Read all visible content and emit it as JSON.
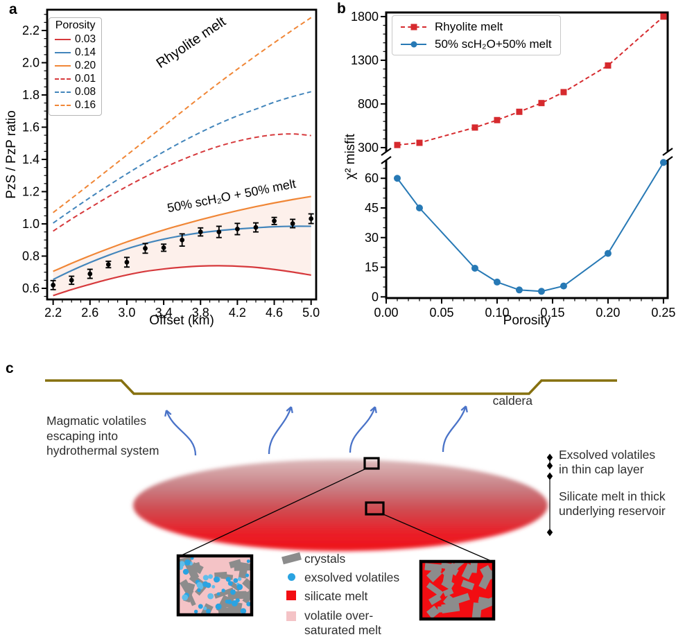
{
  "figure": {
    "background": "#ffffff",
    "panel_labels": {
      "a": "a",
      "b": "b",
      "c": "c"
    }
  },
  "chart_data": [
    {
      "id": "panel_a",
      "type": "line",
      "xlabel": "Offset (km)",
      "ylabel": "PzS / PzP ratio",
      "xlim": [
        2.135,
        5.055
      ],
      "ylim": [
        0.531,
        2.329
      ],
      "xticks": {
        "values": [
          2.2,
          2.6,
          3.0,
          3.4,
          3.8,
          4.2,
          4.6,
          5.0
        ],
        "labels": [
          "2.2",
          "2.6",
          "3.0",
          "3.4",
          "3.8",
          "4.2",
          "4.6",
          "5.0"
        ],
        "minor": 0.1
      },
      "yticks": {
        "values": [
          0.6,
          0.8,
          1.0,
          1.2,
          1.4,
          1.6,
          1.8,
          2.0,
          2.2
        ],
        "labels": [
          "0.6",
          "0.8",
          "1.0",
          "1.2",
          "1.4",
          "1.6",
          "1.8",
          "2.0",
          "2.2"
        ],
        "minor": 0.05
      },
      "legend_title": "Porosity",
      "x": [
        2.2,
        2.4,
        2.6,
        2.8,
        3.0,
        3.2,
        3.4,
        3.6,
        3.8,
        4.0,
        4.2,
        4.4,
        4.6,
        4.8,
        5.0
      ],
      "series": [
        {
          "name": "0.03",
          "style": "solid",
          "color": "#d6393c",
          "values": [
            0.555,
            0.592,
            0.625,
            0.656,
            0.683,
            0.705,
            0.72,
            0.731,
            0.738,
            0.74,
            0.737,
            0.73,
            0.717,
            0.701,
            0.682
          ]
        },
        {
          "name": "0.14",
          "style": "solid",
          "color": "#4285bb",
          "values": [
            0.655,
            0.71,
            0.76,
            0.805,
            0.845,
            0.878,
            0.905,
            0.927,
            0.945,
            0.958,
            0.968,
            0.976,
            0.982,
            0.985,
            0.985
          ]
        },
        {
          "name": "0.20",
          "style": "solid",
          "color": "#f08636",
          "values": [
            0.705,
            0.755,
            0.802,
            0.846,
            0.888,
            0.926,
            0.962,
            0.995,
            1.026,
            1.055,
            1.082,
            1.107,
            1.13,
            1.151,
            1.17
          ]
        },
        {
          "name": "0.01",
          "style": "dashed",
          "color": "#d6393c",
          "values": [
            0.955,
            1.03,
            1.1,
            1.168,
            1.232,
            1.292,
            1.348,
            1.398,
            1.443,
            1.482,
            1.513,
            1.537,
            1.553,
            1.558,
            1.548
          ]
        },
        {
          "name": "0.08",
          "style": "dashed",
          "color": "#4285bb",
          "values": [
            1.005,
            1.085,
            1.163,
            1.238,
            1.31,
            1.38,
            1.447,
            1.51,
            1.568,
            1.622,
            1.67,
            1.712,
            1.755,
            1.79,
            1.82
          ]
        },
        {
          "name": "0.16",
          "style": "dashed",
          "color": "#f08636",
          "values": [
            1.07,
            1.158,
            1.247,
            1.337,
            1.427,
            1.517,
            1.607,
            1.697,
            1.787,
            1.875,
            1.96,
            2.043,
            2.124,
            2.203,
            2.28
          ]
        }
      ],
      "band": {
        "lower": "0.03",
        "upper": "0.20",
        "fill": "#fdf0eb"
      },
      "observations": {
        "color": "#000000",
        "x": [
          2.2,
          2.4,
          2.6,
          2.8,
          3.0,
          3.2,
          3.4,
          3.6,
          3.8,
          4.0,
          4.2,
          4.4,
          4.6,
          4.8,
          5.0
        ],
        "y": [
          0.62,
          0.65,
          0.69,
          0.748,
          0.762,
          0.848,
          0.852,
          0.9,
          0.95,
          0.95,
          0.968,
          0.978,
          1.018,
          1.002,
          1.032
        ],
        "yerr": [
          0.028,
          0.025,
          0.028,
          0.02,
          0.03,
          0.03,
          0.022,
          0.038,
          0.025,
          0.035,
          0.035,
          0.028,
          0.022,
          0.026,
          0.03
        ]
      },
      "annotations": [
        {
          "text": "Rhyolite melt"
        },
        {
          "text": "50% scH₂O + 50% melt"
        }
      ]
    },
    {
      "id": "panel_b",
      "type": "line",
      "xlabel": "Porosity",
      "ylabel": "χ² misfit",
      "xlim": [
        0.0,
        0.2538
      ],
      "xticks": {
        "values": [
          0.0,
          0.05,
          0.1,
          0.15,
          0.2,
          0.25
        ],
        "labels": [
          "0.00",
          "0.05",
          "0.10",
          "0.15",
          "0.20",
          "0.25"
        ],
        "minor": 0.01
      },
      "top_axis": {
        "ylim": [
          252,
          1847
        ],
        "ticks": [
          300,
          800,
          1300,
          1800
        ],
        "labels": [
          "300",
          "800",
          "1300",
          "1800"
        ],
        "minor": 100
      },
      "bottom_axis": {
        "ylim": [
          -0.6,
          69.2
        ],
        "ticks": [
          0,
          15,
          30,
          45,
          60
        ],
        "labels": [
          "0",
          "15",
          "30",
          "45",
          "60"
        ],
        "minor": 5
      },
      "x": [
        0.01,
        0.03,
        0.08,
        0.1,
        0.12,
        0.14,
        0.16,
        0.2,
        0.25
      ],
      "series": [
        {
          "name": "Rhyolite melt",
          "axis": "top",
          "style": "dashed",
          "marker": "square",
          "color": "#d62a2e",
          "values": [
            330,
            355,
            530,
            615,
            710,
            810,
            935,
            1240,
            1800
          ]
        },
        {
          "name": "50% scH₂O+50% melt",
          "axis": "bottom",
          "style": "solid",
          "marker": "circle",
          "color": "#2779b5",
          "values": [
            60,
            45,
            14.5,
            7.5,
            3.5,
            2.8,
            5.5,
            22,
            68
          ]
        }
      ]
    }
  ],
  "panel_c": {
    "caldera_label": "caldera",
    "escape_text": "Magmatic volatiles\nescaping into\nhydrothermal system",
    "cap_text": "Exsolved volatiles\nin thin cap layer",
    "reservoir_text": "Silicate melt in thick\nunderlying reservoir",
    "legend": [
      {
        "label": "crystals",
        "swatch": "crystal"
      },
      {
        "label": "exsolved volatiles",
        "swatch": "dot"
      },
      {
        "label": "silicate melt",
        "swatch": "red-square"
      },
      {
        "label": "volatile over-\nsaturated melt",
        "swatch": "pink-square"
      }
    ],
    "colors": {
      "caldera_line": "#86700f",
      "arrow": "#4a73c8",
      "crystal": "#8c8c8c",
      "volatile_dot": "#2aa3e1",
      "melt_red": "#f20d12",
      "oversaturated_pink": "#f4c3c6",
      "ellipse_top": "#dcbabb",
      "ellipse_bottom": "#ef1019"
    }
  }
}
